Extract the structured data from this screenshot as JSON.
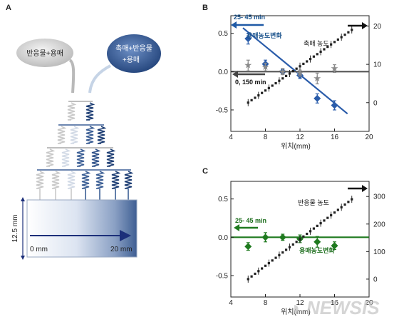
{
  "panel_a": {
    "letter": "A",
    "inlet_left": "반응물+용매",
    "inlet_right_line1": "촉매+반응물",
    "inlet_right_line2": "+용매",
    "height_label": "12.5 mm",
    "start_label": "0 mm",
    "end_label": "20 mm"
  },
  "watermark": "NEWSIS",
  "chart_data": [
    {
      "panel": "B",
      "type": "scatter",
      "x": {
        "ticks": [
          "4",
          "8",
          "12",
          "16",
          "20"
        ],
        "lim": [
          4,
          20
        ],
        "label": "위치(mm)"
      },
      "y_left": {
        "ticks": [
          "0.5",
          "0.0",
          "-0.5"
        ],
        "lim": [
          -0.78,
          0.73
        ]
      },
      "y_right": {
        "ticks": [
          "20",
          "10",
          "0"
        ],
        "lim": [
          -7.5,
          22.7
        ]
      },
      "annotations": {
        "top_left": "25- 45 min",
        "solvent": "용매농도변화",
        "catalyst": "촉매 농도",
        "bottom_left": "0, 150 min"
      },
      "colors": {
        "blue": "#2a5caa",
        "gray": "#8a8a8a",
        "dark": "#555555",
        "dots": "#222222"
      },
      "series": [
        {
          "role": "solvent_25_45",
          "axis": "left",
          "points": [
            [
              6,
              0.43,
              0.07
            ],
            [
              8,
              0.1,
              0.05
            ],
            [
              10,
              0.0,
              0.03
            ],
            [
              12,
              -0.05,
              0.04
            ],
            [
              14,
              -0.35,
              0.06
            ],
            [
              16,
              -0.44,
              0.06
            ]
          ],
          "fit": [
            [
              5.4,
              0.57
            ],
            [
              17.5,
              -0.55
            ]
          ]
        },
        {
          "role": "solvent_0_150",
          "axis": "left",
          "points": [
            [
              6,
              0.08,
              0.07
            ],
            [
              8,
              0.06,
              0.05
            ],
            [
              10,
              0.0,
              0.04
            ],
            [
              12,
              -0.02,
              0.04
            ],
            [
              14,
              -0.09,
              0.07
            ],
            [
              16,
              0.04,
              0.05
            ]
          ],
          "fit": [
            [
              4,
              0.0
            ],
            [
              20,
              0.0
            ]
          ]
        },
        {
          "role": "catalyst",
          "axis": "right",
          "x_range": [
            6,
            18
          ],
          "y_range": [
            0,
            19
          ],
          "count": 31
        }
      ]
    },
    {
      "panel": "C",
      "type": "scatter",
      "x": {
        "ticks": [
          "4",
          "8",
          "12",
          "16",
          "20"
        ],
        "lim": [
          4,
          20
        ],
        "label": "위치(mm)"
      },
      "y_left": {
        "ticks": [
          "0.5",
          "0.0",
          "-0.5"
        ],
        "lim": [
          -0.78,
          0.73
        ]
      },
      "y_right": {
        "ticks": [
          "300",
          "200",
          "100",
          "0"
        ],
        "lim": [
          -65,
          355
        ]
      },
      "annotations": {
        "reactant": "반응물 농도",
        "top_left": "25- 45 min",
        "solvent": "용매농도변화"
      },
      "colors": {
        "green": "#1f7a1f",
        "dots": "#222222"
      },
      "series": [
        {
          "role": "solvent",
          "axis": "left",
          "points": [
            [
              6,
              -0.12,
              0.05
            ],
            [
              8,
              0.0,
              0.06
            ],
            [
              10,
              0.0,
              0.04
            ],
            [
              12,
              -0.02,
              0.05
            ],
            [
              14,
              -0.06,
              0.07
            ],
            [
              16,
              -0.11,
              0.05
            ]
          ],
          "fit": [
            [
              4,
              0.0
            ],
            [
              20,
              0.0
            ]
          ]
        },
        {
          "role": "reactant",
          "axis": "right",
          "x_range": [
            6,
            18
          ],
          "y_range": [
            0,
            290
          ],
          "count": 31
        }
      ]
    }
  ]
}
